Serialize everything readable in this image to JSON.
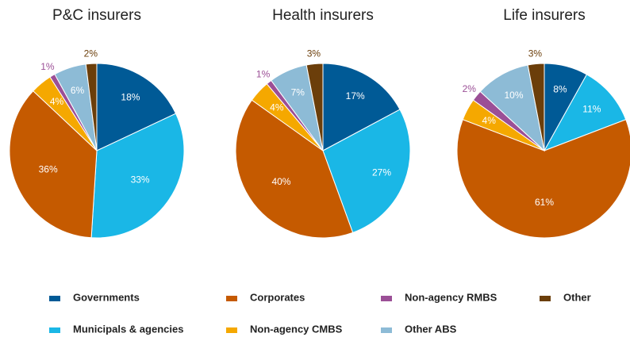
{
  "chart_data": [
    {
      "type": "pie",
      "title": "P&C insurers",
      "categories": [
        "Governments",
        "Municipals & agencies",
        "Corporates",
        "Non-agency CMBS",
        "Non-agency RMBS",
        "Other ABS",
        "Other"
      ],
      "values": [
        18,
        33,
        36,
        4,
        1,
        6,
        2
      ],
      "value_labels": [
        "18%",
        "33%",
        "36%",
        "4%",
        "1%",
        "6%",
        "2%"
      ],
      "colors": [
        "#005a96",
        "#1ab7e6",
        "#c55a00",
        "#f5a800",
        "#9b4f96",
        "#8dbbd6",
        "#6b3e0a"
      ]
    },
    {
      "type": "pie",
      "title": "Health insurers",
      "categories": [
        "Governments",
        "Municipals & agencies",
        "Corporates",
        "Non-agency CMBS",
        "Non-agency RMBS",
        "Other ABS",
        "Other"
      ],
      "values": [
        17,
        27,
        40,
        4,
        1,
        7,
        3
      ],
      "value_labels": [
        "17%",
        "27%",
        "40%",
        "4%",
        "1%",
        "7%",
        "3%"
      ],
      "colors": [
        "#005a96",
        "#1ab7e6",
        "#c55a00",
        "#f5a800",
        "#9b4f96",
        "#8dbbd6",
        "#6b3e0a"
      ]
    },
    {
      "type": "pie",
      "title": "Life insurers",
      "categories": [
        "Governments",
        "Municipals & agencies",
        "Corporates",
        "Non-agency CMBS",
        "Non-agency RMBS",
        "Other ABS",
        "Other"
      ],
      "values": [
        8,
        11,
        61,
        4,
        2,
        10,
        3
      ],
      "value_labels": [
        "8%",
        "11%",
        "61%",
        "4%",
        "2%",
        "10%",
        "3%"
      ],
      "colors": [
        "#005a96",
        "#1ab7e6",
        "#c55a00",
        "#f5a800",
        "#9b4f96",
        "#8dbbd6",
        "#6b3e0a"
      ]
    }
  ]
}
